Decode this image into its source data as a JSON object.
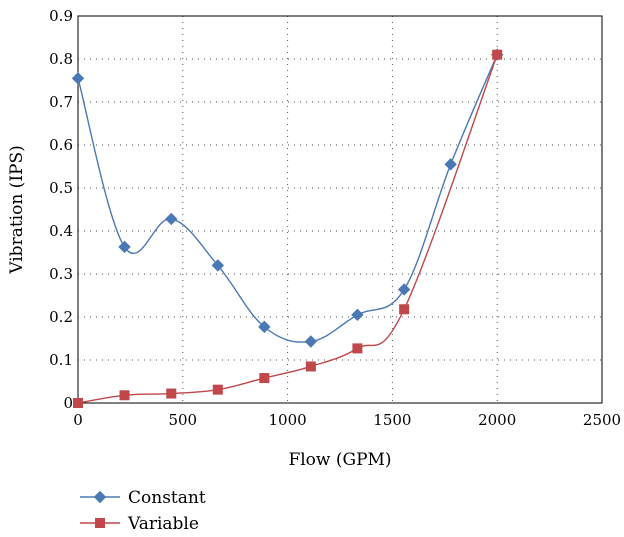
{
  "chart_data": {
    "type": "line",
    "xlabel": "Flow (GPM)",
    "ylabel": "Vibration (IPS)",
    "xlim": [
      0,
      2500
    ],
    "ylim": [
      0,
      0.9
    ],
    "xticks": [
      0,
      500,
      1000,
      1500,
      2000,
      2500
    ],
    "xtick_labels": [
      "0",
      "500",
      "1000",
      "1500",
      "2000",
      "2500"
    ],
    "yticks": [
      0,
      0.1,
      0.2,
      0.3,
      0.4,
      0.5,
      0.6,
      0.7,
      0.8,
      0.9
    ],
    "ytick_labels": [
      "0",
      "0.1",
      "0.2",
      "0.3",
      "0.4",
      "0.5",
      "0.6",
      "0.7",
      "0.8",
      "0.9"
    ],
    "grid": true,
    "legend_position": "bottom-left, below plot",
    "series": [
      {
        "name": "Constant",
        "color": "#4a78b5",
        "marker": "diamond",
        "x": [
          0,
          222,
          445,
          667,
          889,
          1111,
          1333,
          1556,
          1778,
          2000
        ],
        "y": [
          0.755,
          0.363,
          0.428,
          0.32,
          0.177,
          0.143,
          0.205,
          0.264,
          0.555,
          0.81
        ]
      },
      {
        "name": "Variable",
        "color": "#c0474a",
        "marker": "square",
        "x": [
          0,
          222,
          445,
          667,
          889,
          1111,
          1333,
          1556,
          2000
        ],
        "y": [
          0.0,
          0.018,
          0.022,
          0.031,
          0.058,
          0.085,
          0.127,
          0.218,
          0.81
        ]
      }
    ]
  }
}
